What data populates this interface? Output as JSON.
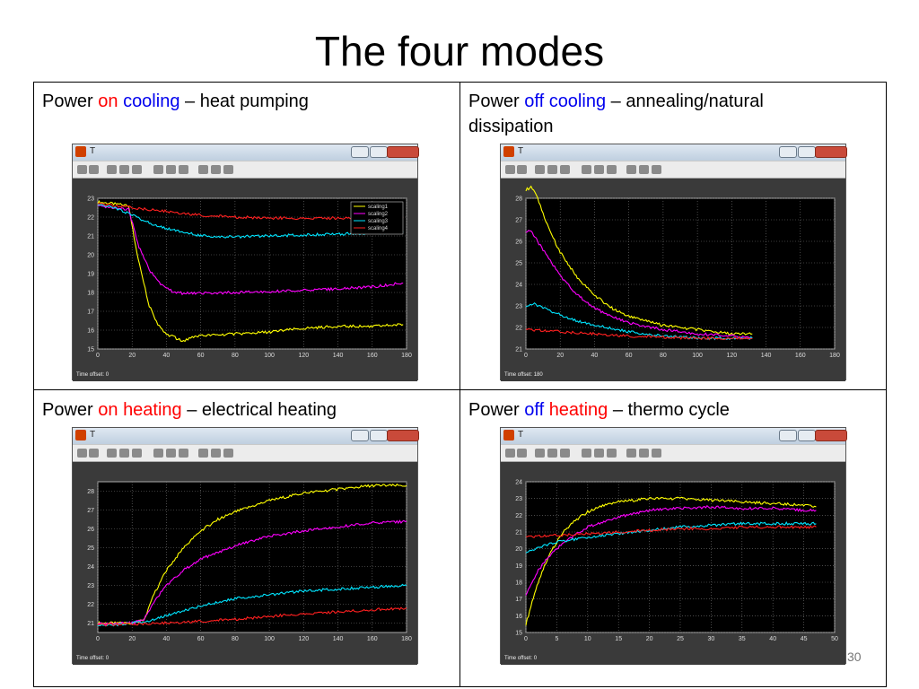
{
  "title": "The four modes",
  "page_number": "30",
  "panels": [
    {
      "caption": [
        {
          "text": "Power ",
          "color": "black"
        },
        {
          "text": "on",
          "color": "red"
        },
        {
          "text": " ",
          "color": "black"
        },
        {
          "text": "cooling",
          "color": "blue"
        },
        {
          "text": " – heat pumping",
          "color": "black"
        }
      ],
      "window_title": "T",
      "time_offset_label": "Time offset:",
      "time_offset": "0",
      "chart_data": {
        "type": "line",
        "xlim": [
          0,
          180
        ],
        "ylim": [
          15,
          23
        ],
        "xticks": [
          0,
          20,
          40,
          60,
          80,
          100,
          120,
          140,
          160,
          180
        ],
        "yticks": [
          15,
          16,
          17,
          18,
          19,
          20,
          21,
          22,
          23
        ],
        "grid": true,
        "legend": {
          "position": "top-right",
          "entries": [
            "scaling1",
            "scaling2",
            "scaling3",
            "scaling4"
          ]
        },
        "series": [
          {
            "name": "scaling1",
            "color": "#ffff00",
            "x": [
              0,
              10,
              18,
              22,
              26,
              30,
              35,
              40,
              45,
              50,
              55,
              60,
              80,
              100,
              120,
              140,
              160,
              178
            ],
            "y": [
              22.8,
              22.7,
              22.6,
              20.5,
              18.8,
              17.3,
              16.3,
              15.8,
              15.6,
              15.4,
              15.6,
              15.7,
              15.8,
              15.9,
              16.1,
              16.2,
              16.2,
              16.3
            ]
          },
          {
            "name": "scaling2",
            "color": "#ff00ff",
            "x": [
              0,
              10,
              18,
              24,
              30,
              35,
              40,
              45,
              50,
              60,
              80,
              100,
              120,
              140,
              160,
              178
            ],
            "y": [
              22.6,
              22.5,
              22.4,
              20.4,
              19.2,
              18.6,
              18.2,
              18.0,
              17.95,
              17.95,
              18.0,
              18.05,
              18.1,
              18.2,
              18.3,
              18.5
            ]
          },
          {
            "name": "scaling3",
            "color": "#00e5ff",
            "x": [
              0,
              10,
              20,
              30,
              40,
              50,
              60,
              80,
              100,
              120,
              140,
              160,
              178
            ],
            "y": [
              22.7,
              22.5,
              22.1,
              21.7,
              21.4,
              21.2,
              21.0,
              20.95,
              21.0,
              21.05,
              21.1,
              21.15,
              21.2
            ]
          },
          {
            "name": "scaling4",
            "color": "#ff2020",
            "x": [
              0,
              20,
              40,
              60,
              80,
              100,
              120,
              140,
              160,
              178
            ],
            "y": [
              22.7,
              22.5,
              22.3,
              22.1,
              22.0,
              21.95,
              21.95,
              21.95,
              21.95,
              22.0
            ]
          }
        ]
      }
    },
    {
      "caption": [
        {
          "text": "Power ",
          "color": "black"
        },
        {
          "text": "off",
          "color": "blue"
        },
        {
          "text": " ",
          "color": "black"
        },
        {
          "text": "cooling",
          "color": "blue"
        },
        {
          "text": " – annealing/natural dissipation",
          "color": "black"
        }
      ],
      "window_title": "T",
      "time_offset_label": "Time offset:",
      "time_offset": "180",
      "chart_data": {
        "type": "line",
        "xlim": [
          0,
          180
        ],
        "ylim": [
          21,
          28
        ],
        "xticks": [
          0,
          20,
          40,
          60,
          80,
          100,
          120,
          140,
          160,
          180
        ],
        "yticks": [
          21,
          22,
          23,
          24,
          25,
          26,
          27,
          28
        ],
        "grid": true,
        "series": [
          {
            "color": "#ffff00",
            "x": [
              0,
              3,
              6,
              10,
              15,
              20,
              30,
              40,
              50,
              60,
              70,
              80,
              100,
              120,
              132
            ],
            "y": [
              28.4,
              28.5,
              28.2,
              27.3,
              26.3,
              25.5,
              24.3,
              23.5,
              22.9,
              22.5,
              22.3,
              22.1,
              21.9,
              21.7,
              21.7
            ]
          },
          {
            "color": "#ff00ff",
            "x": [
              0,
              3,
              6,
              10,
              15,
              20,
              30,
              40,
              50,
              60,
              80,
              100,
              120,
              132
            ],
            "y": [
              26.4,
              26.5,
              26.1,
              25.6,
              25.0,
              24.4,
              23.5,
              22.9,
              22.5,
              22.2,
              21.9,
              21.7,
              21.6,
              21.5
            ]
          },
          {
            "color": "#00e5ff",
            "x": [
              0,
              5,
              10,
              20,
              30,
              40,
              60,
              80,
              100,
              132
            ],
            "y": [
              23.0,
              23.1,
              22.9,
              22.6,
              22.3,
              22.1,
              21.8,
              21.6,
              21.5,
              21.5
            ]
          },
          {
            "color": "#ff2020",
            "x": [
              0,
              20,
              40,
              60,
              80,
              100,
              132
            ],
            "y": [
              21.9,
              21.8,
              21.7,
              21.6,
              21.55,
              21.5,
              21.5
            ]
          }
        ]
      }
    },
    {
      "caption": [
        {
          "text": "Power ",
          "color": "black"
        },
        {
          "text": "on",
          "color": "red"
        },
        {
          "text": " ",
          "color": "black"
        },
        {
          "text": "heating",
          "color": "red"
        },
        {
          "text": " – electrical heating",
          "color": "black"
        }
      ],
      "window_title": "T",
      "time_offset_label": "Time offset:",
      "time_offset": "0",
      "chart_data": {
        "type": "line",
        "xlim": [
          0,
          180
        ],
        "ylim": [
          20.5,
          28.5
        ],
        "xticks": [
          0,
          20,
          40,
          60,
          80,
          100,
          120,
          140,
          160,
          180
        ],
        "yticks": [
          21,
          22,
          23,
          24,
          25,
          26,
          27,
          28
        ],
        "grid": true,
        "series": [
          {
            "color": "#ffff00",
            "x": [
              0,
              10,
              20,
              27,
              32,
              40,
              50,
              60,
              70,
              80,
              100,
              120,
              140,
              160,
              180
            ],
            "y": [
              21.0,
              21.0,
              21.0,
              21.2,
              22.4,
              23.8,
              25.0,
              25.9,
              26.5,
              26.9,
              27.5,
              27.9,
              28.1,
              28.3,
              28.3
            ]
          },
          {
            "color": "#ff00ff",
            "x": [
              0,
              10,
              20,
              27,
              35,
              40,
              50,
              60,
              80,
              100,
              120,
              140,
              160,
              180
            ],
            "y": [
              20.95,
              21.0,
              21.0,
              21.2,
              22.4,
              23.0,
              23.8,
              24.4,
              25.1,
              25.6,
              25.9,
              26.1,
              26.3,
              26.4
            ]
          },
          {
            "color": "#00e5ff",
            "x": [
              0,
              10,
              20,
              28,
              40,
              60,
              80,
              100,
              120,
              140,
              160,
              180
            ],
            "y": [
              20.9,
              20.9,
              21.0,
              21.1,
              21.4,
              21.9,
              22.3,
              22.5,
              22.7,
              22.8,
              22.9,
              23.0
            ]
          },
          {
            "color": "#ff2020",
            "x": [
              0,
              20,
              40,
              60,
              80,
              100,
              120,
              140,
              160,
              180
            ],
            "y": [
              20.9,
              20.95,
              21.0,
              21.1,
              21.2,
              21.35,
              21.5,
              21.6,
              21.7,
              21.8
            ]
          }
        ]
      }
    },
    {
      "caption": [
        {
          "text": "Power ",
          "color": "black"
        },
        {
          "text": "off",
          "color": "blue"
        },
        {
          "text": " ",
          "color": "black"
        },
        {
          "text": "heating",
          "color": "red"
        },
        {
          "text": " – thermo cycle",
          "color": "black"
        }
      ],
      "window_title": "T",
      "time_offset_label": "Time offset:",
      "time_offset": "0",
      "chart_data": {
        "type": "line",
        "xlim": [
          0,
          50
        ],
        "ylim": [
          15,
          24
        ],
        "xticks": [
          0,
          5,
          10,
          15,
          20,
          25,
          30,
          35,
          40,
          45,
          50
        ],
        "yticks": [
          15,
          16,
          17,
          18,
          19,
          20,
          21,
          22,
          23,
          24
        ],
        "grid": true,
        "series": [
          {
            "color": "#ffff00",
            "x": [
              0,
              1,
              2,
              3,
              4,
              5,
              6,
              8,
              10,
              12,
              15,
              20,
              25,
              30,
              35,
              40,
              45,
              47
            ],
            "y": [
              15.5,
              16.8,
              18.0,
              19.0,
              19.8,
              20.4,
              21.0,
              21.7,
              22.2,
              22.5,
              22.8,
              23.0,
              23.0,
              22.9,
              22.8,
              22.7,
              22.6,
              22.5
            ]
          },
          {
            "color": "#ff00ff",
            "x": [
              0,
              1,
              2,
              3,
              5,
              7,
              10,
              15,
              20,
              25,
              30,
              35,
              40,
              45,
              47
            ],
            "y": [
              17.2,
              18.0,
              18.7,
              19.2,
              20.0,
              20.6,
              21.3,
              21.9,
              22.3,
              22.4,
              22.5,
              22.4,
              22.4,
              22.3,
              22.3
            ]
          },
          {
            "color": "#00e5ff",
            "x": [
              0,
              3,
              5,
              10,
              15,
              20,
              25,
              30,
              35,
              40,
              45,
              47
            ],
            "y": [
              19.8,
              20.2,
              20.4,
              20.7,
              20.9,
              21.1,
              21.3,
              21.4,
              21.5,
              21.5,
              21.5,
              21.5
            ]
          },
          {
            "color": "#ff2020",
            "x": [
              0,
              5,
              10,
              15,
              20,
              25,
              30,
              35,
              40,
              45,
              47
            ],
            "y": [
              20.7,
              20.8,
              20.9,
              21.0,
              21.1,
              21.2,
              21.2,
              21.3,
              21.3,
              21.3,
              21.3
            ]
          }
        ]
      }
    }
  ]
}
